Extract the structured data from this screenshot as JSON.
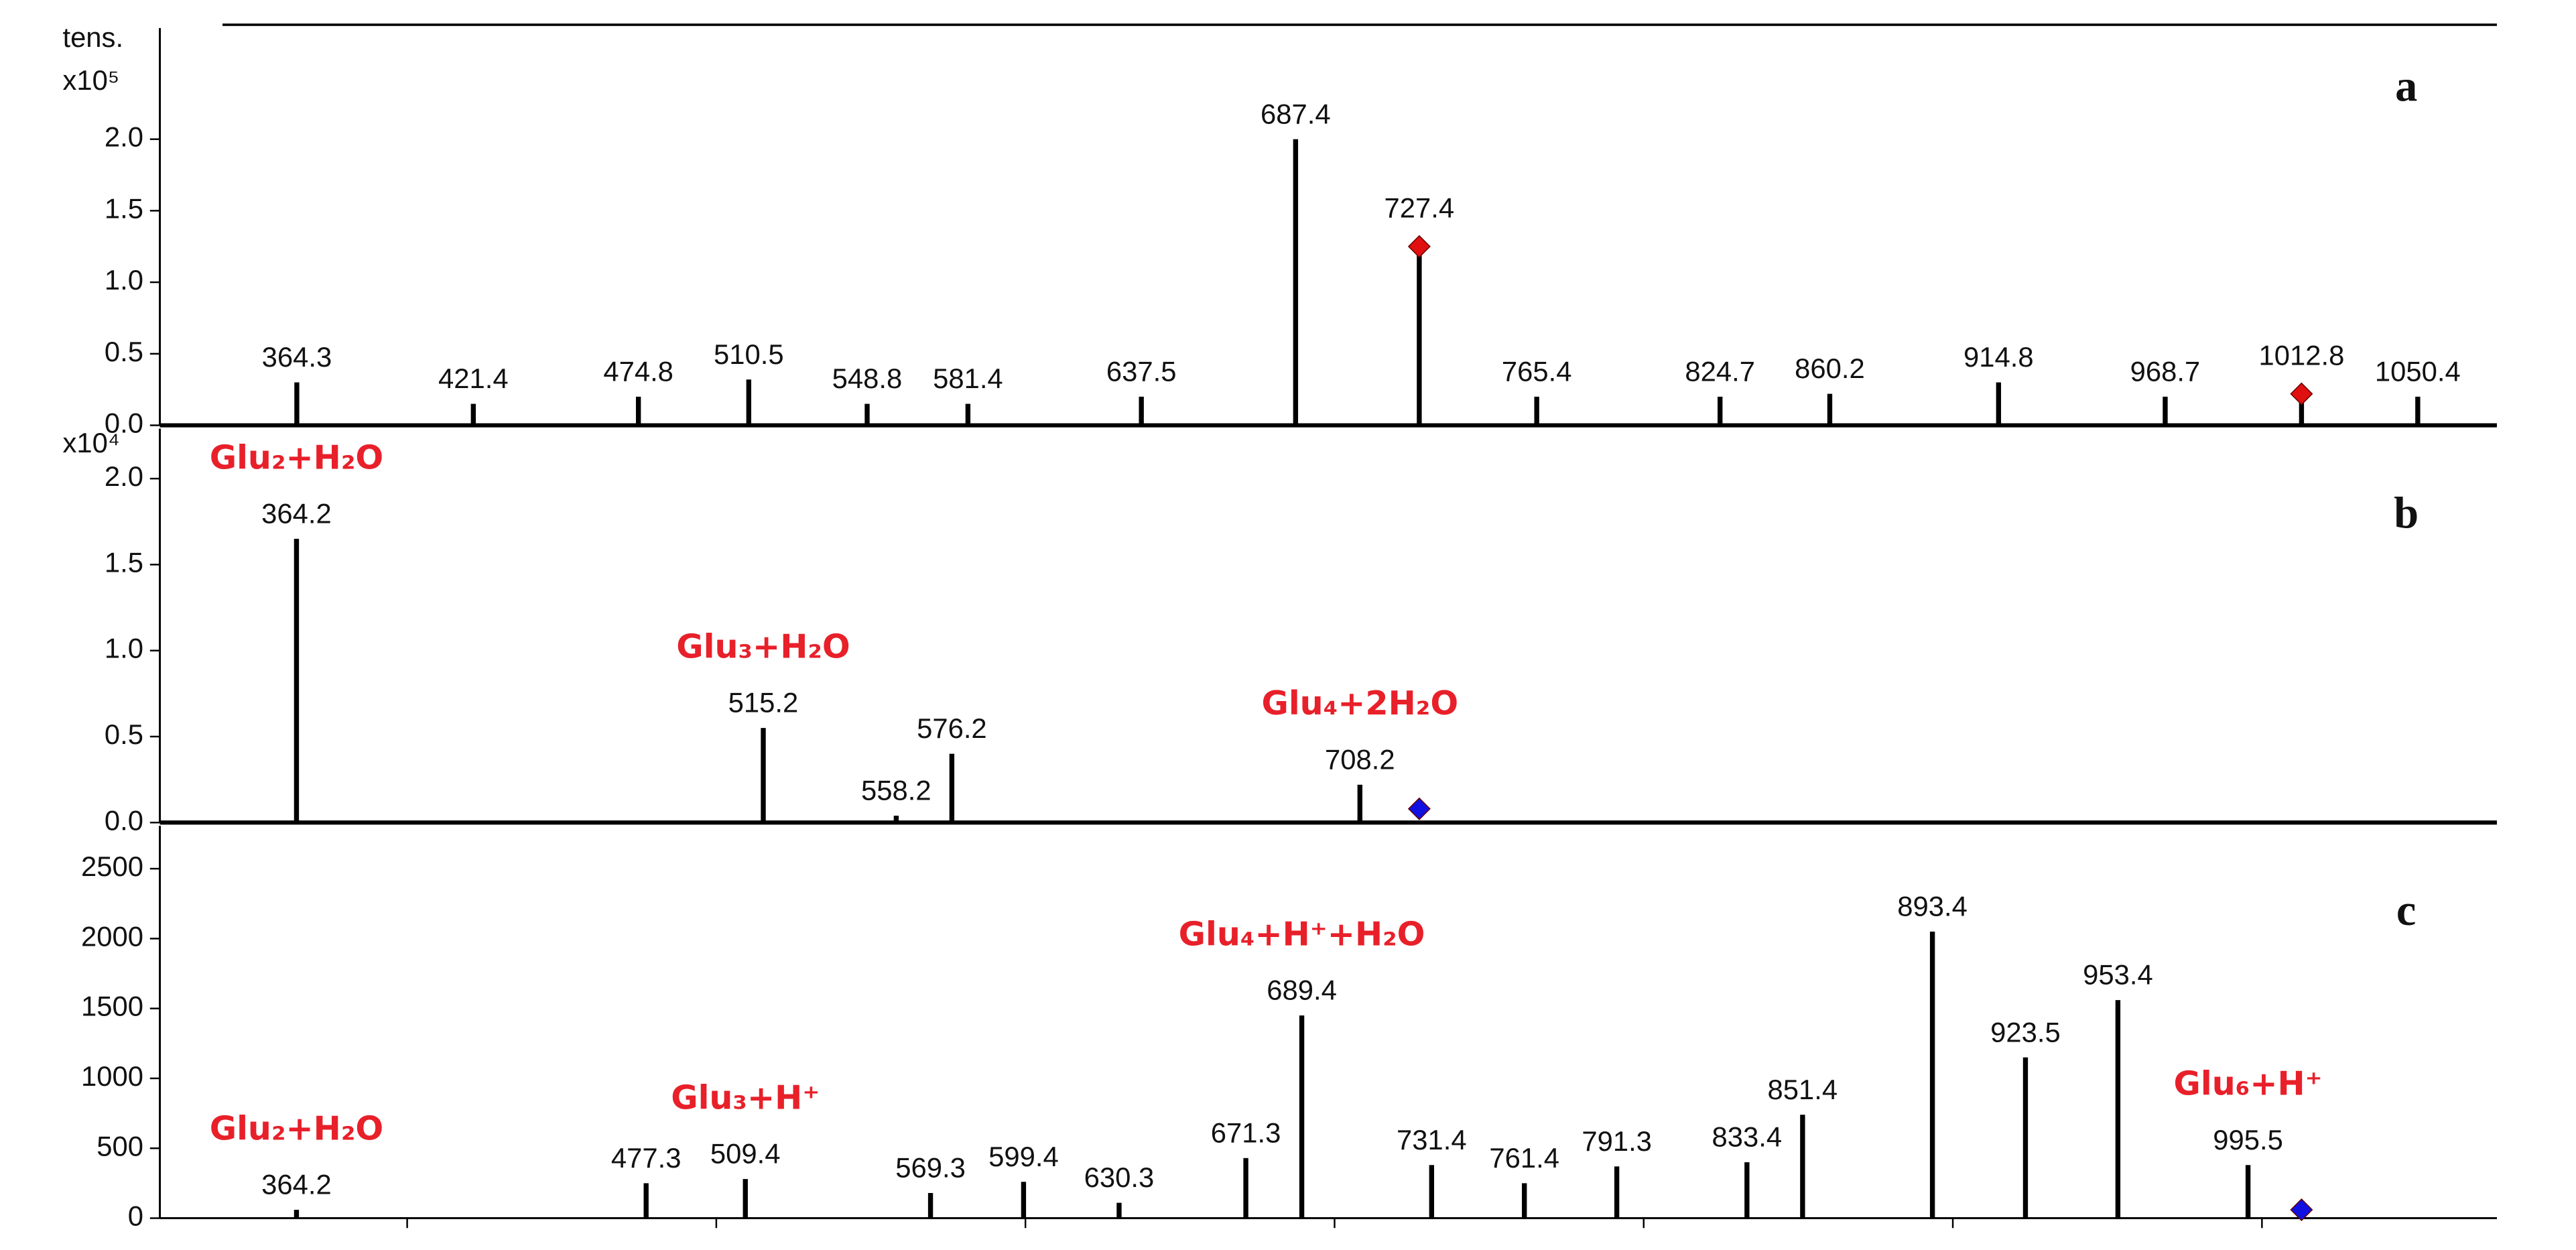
{
  "chart_data": [
    {
      "type": "bar",
      "label": "a",
      "ylabel": "tens.",
      "yscale_label": "x10⁵",
      "color": "#000000",
      "x": [
        364.3,
        421.4,
        474.8,
        510.5,
        548.8,
        581.4,
        637.5,
        687.4,
        727.4,
        765.4,
        824.7,
        860.2,
        914.8,
        968.7,
        1012.8,
        1050.4
      ],
      "values": [
        0.3,
        0.15,
        0.2,
        0.32,
        0.15,
        0.15,
        0.2,
        2.0,
        1.25,
        0.2,
        0.2,
        0.22,
        0.3,
        0.2,
        0.22,
        0.2
      ],
      "xlim": [
        320,
        1076
      ],
      "xticks": [
        400,
        500,
        600,
        700,
        800,
        900,
        1000
      ],
      "ylim": [
        0,
        2.8
      ],
      "yticks": [
        {
          "value": 0,
          "label": "0.0"
        },
        {
          "value": 0.5,
          "label": "0.5"
        },
        {
          "value": 1,
          "label": "1.0"
        },
        {
          "value": 1.5,
          "label": "1.5"
        },
        {
          "value": 2,
          "label": "2.0"
        }
      ],
      "markers": {
        "x": [
          727.4,
          1012.8
        ],
        "values": [
          1.25,
          0.22
        ],
        "color": "#e01010",
        "label_color": "#a01818"
      },
      "annotations": []
    },
    {
      "type": "bar",
      "label": "b",
      "yscale_label": "x10⁴",
      "color": "#000000",
      "x": [
        364.2,
        515.2,
        558.2,
        576.2,
        708.2
      ],
      "values": [
        1.65,
        0.55,
        0.04,
        0.4,
        0.22
      ],
      "xlim": [
        320,
        1076
      ],
      "xticks": [
        400,
        500,
        600,
        700,
        800,
        900,
        1000
      ],
      "ylim": [
        0,
        2.31
      ],
      "yticks": [
        {
          "value": 0,
          "label": "0.0"
        },
        {
          "value": 0.5,
          "label": "0.5"
        },
        {
          "value": 1,
          "label": "1.0"
        },
        {
          "value": 1.5,
          "label": "1.5"
        },
        {
          "value": 2,
          "label": "2.0"
        }
      ],
      "markers": {
        "x": [
          727.4
        ],
        "values": [
          0.08
        ],
        "color": "#1010e0"
      },
      "annotations": [
        {
          "text": "Glu₂+H₂O",
          "x": 364.2
        },
        {
          "text": "Glu₃+H₂O",
          "x": 515.2
        },
        {
          "text": "Glu₄+2H₂O",
          "x": 708.2
        }
      ]
    },
    {
      "type": "bar",
      "label": "c",
      "color": "#000000",
      "x": [
        364.2,
        477.3,
        509.4,
        569.3,
        599.4,
        630.3,
        671.3,
        689.4,
        731.4,
        761.4,
        791.3,
        833.4,
        851.4,
        893.4,
        923.5,
        953.4,
        995.5
      ],
      "values": [
        60,
        250,
        280,
        180,
        260,
        110,
        430,
        1450,
        380,
        250,
        370,
        400,
        740,
        2050,
        1150,
        1560,
        380
      ],
      "xlim": [
        320,
        1076
      ],
      "xticks": [
        400,
        500,
        600,
        700,
        800,
        900,
        1000
      ],
      "ylim": [
        0,
        2830
      ],
      "yticks": [
        0,
        500,
        1000,
        1500,
        2000,
        2500
      ],
      "markers": {
        "x": [
          1012.8
        ],
        "values": [
          60
        ],
        "color": "#1010e0"
      },
      "annotations": [
        {
          "text": "Glu₂+H₂O",
          "x": 364.2
        },
        {
          "text": "Glu₃+H⁺",
          "x": 509.4
        },
        {
          "text": "Glu₄+H⁺+H₂O",
          "x": 689.4
        },
        {
          "text": "Glu₆+H⁺",
          "x": 995.5
        }
      ]
    }
  ]
}
